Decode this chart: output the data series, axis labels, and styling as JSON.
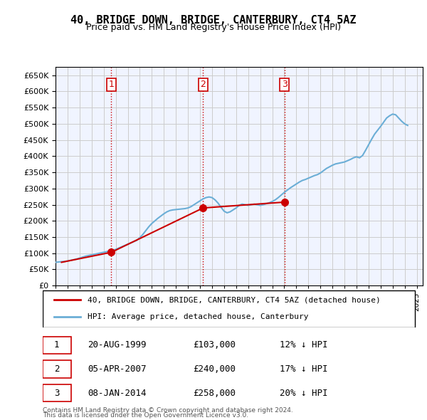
{
  "title": "40, BRIDGE DOWN, BRIDGE, CANTERBURY, CT4 5AZ",
  "subtitle": "Price paid vs. HM Land Registry's House Price Index (HPI)",
  "property_label": "40, BRIDGE DOWN, BRIDGE, CANTERBURY, CT4 5AZ (detached house)",
  "hpi_label": "HPI: Average price, detached house, Canterbury",
  "footer1": "Contains HM Land Registry data © Crown copyright and database right 2024.",
  "footer2": "This data is licensed under the Open Government Licence v3.0.",
  "transactions": [
    {
      "num": 1,
      "date": "20-AUG-1999",
      "price": 103000,
      "pct": "12%",
      "dir": "↓",
      "x": 1999.64
    },
    {
      "num": 2,
      "date": "05-APR-2007",
      "price": 240000,
      "pct": "17%",
      "dir": "↓",
      "x": 2007.26
    },
    {
      "num": 3,
      "date": "08-JAN-2014",
      "price": 258000,
      "pct": "20%",
      "dir": "↓",
      "x": 2014.02
    }
  ],
  "hpi_color": "#6baed6",
  "price_color": "#cc0000",
  "marker_color": "#cc0000",
  "bg_color": "#ffffff",
  "grid_color": "#cccccc",
  "ylim": [
    0,
    675000
  ],
  "yticks": [
    0,
    50000,
    100000,
    150000,
    200000,
    250000,
    300000,
    350000,
    400000,
    450000,
    500000,
    550000,
    600000,
    650000
  ],
  "hpi_data": {
    "years": [
      1995.0,
      1995.25,
      1995.5,
      1995.75,
      1996.0,
      1996.25,
      1996.5,
      1996.75,
      1997.0,
      1997.25,
      1997.5,
      1997.75,
      1998.0,
      1998.25,
      1998.5,
      1998.75,
      1999.0,
      1999.25,
      1999.5,
      1999.75,
      2000.0,
      2000.25,
      2000.5,
      2000.75,
      2001.0,
      2001.25,
      2001.5,
      2001.75,
      2002.0,
      2002.25,
      2002.5,
      2002.75,
      2003.0,
      2003.25,
      2003.5,
      2003.75,
      2004.0,
      2004.25,
      2004.5,
      2004.75,
      2005.0,
      2005.25,
      2005.5,
      2005.75,
      2006.0,
      2006.25,
      2006.5,
      2006.75,
      2007.0,
      2007.25,
      2007.5,
      2007.75,
      2008.0,
      2008.25,
      2008.5,
      2008.75,
      2009.0,
      2009.25,
      2009.5,
      2009.75,
      2010.0,
      2010.25,
      2010.5,
      2010.75,
      2011.0,
      2011.25,
      2011.5,
      2011.75,
      2012.0,
      2012.25,
      2012.5,
      2012.75,
      2013.0,
      2013.25,
      2013.5,
      2013.75,
      2014.0,
      2014.25,
      2014.5,
      2014.75,
      2015.0,
      2015.25,
      2015.5,
      2015.75,
      2016.0,
      2016.25,
      2016.5,
      2016.75,
      2017.0,
      2017.25,
      2017.5,
      2017.75,
      2018.0,
      2018.25,
      2018.5,
      2018.75,
      2019.0,
      2019.25,
      2019.5,
      2019.75,
      2020.0,
      2020.25,
      2020.5,
      2020.75,
      2021.0,
      2021.25,
      2021.5,
      2021.75,
      2022.0,
      2022.25,
      2022.5,
      2022.75,
      2023.0,
      2023.25,
      2023.5,
      2023.75,
      2024.0,
      2024.25
    ],
    "values": [
      72000,
      73000,
      74000,
      74500,
      76000,
      78000,
      80000,
      82000,
      85000,
      88000,
      91000,
      93000,
      95000,
      97000,
      99000,
      101000,
      103000,
      105000,
      107000,
      109000,
      112000,
      116000,
      120000,
      124000,
      128000,
      132000,
      136000,
      140000,
      148000,
      158000,
      170000,
      182000,
      192000,
      200000,
      208000,
      215000,
      222000,
      228000,
      232000,
      234000,
      235000,
      236000,
      237000,
      238000,
      240000,
      244000,
      250000,
      256000,
      262000,
      268000,
      272000,
      274000,
      272000,
      265000,
      255000,
      242000,
      230000,
      225000,
      228000,
      234000,
      240000,
      248000,
      252000,
      250000,
      248000,
      250000,
      252000,
      250000,
      248000,
      250000,
      253000,
      256000,
      260000,
      265000,
      272000,
      280000,
      288000,
      295000,
      302000,
      308000,
      314000,
      320000,
      325000,
      328000,
      332000,
      336000,
      340000,
      343000,
      348000,
      355000,
      362000,
      367000,
      372000,
      376000,
      378000,
      380000,
      382000,
      386000,
      390000,
      395000,
      398000,
      395000,
      402000,
      418000,
      435000,
      452000,
      468000,
      480000,
      492000,
      505000,
      518000,
      525000,
      530000,
      528000,
      518000,
      508000,
      500000,
      495000
    ]
  },
  "price_data": {
    "years": [
      1995.5,
      1999.64,
      2007.26,
      2014.02
    ],
    "values": [
      72000,
      103000,
      240000,
      258000
    ]
  },
  "vline_years": [
    1999.64,
    2007.26,
    2014.02
  ],
  "vline_color": "#cc0000"
}
